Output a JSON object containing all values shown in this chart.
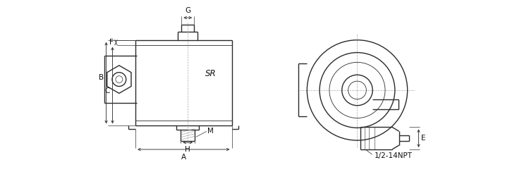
{
  "bg_color": "#ffffff",
  "line_color": "#2a2a2a",
  "dim_color": "#333333",
  "label_color": "#111111",
  "fig_width": 7.5,
  "fig_height": 2.44,
  "dpi": 100,
  "labels": {
    "G": "G",
    "F": "F",
    "B": "B",
    "C": "C",
    "SR": "SR",
    "H": "H",
    "M": "M",
    "A": "A",
    "E": "E",
    "npt": "1/2-14NPT"
  }
}
